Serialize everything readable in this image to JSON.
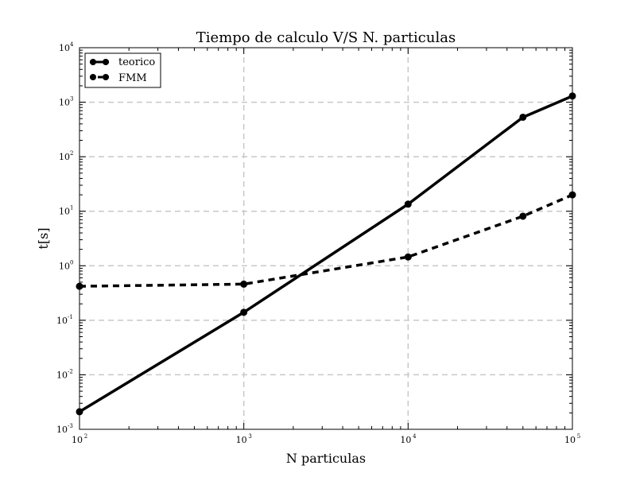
{
  "chart_data": {
    "type": "line",
    "title": "Tiempo de calculo V/S N. particulas",
    "xlabel": "N particulas",
    "ylabel": "t[s]",
    "xscale": "log",
    "yscale": "log",
    "xlim": [
      100,
      100000
    ],
    "ylim": [
      0.001,
      10000
    ],
    "grid": true,
    "legend_position": "top-left",
    "x_ticks": [
      {
        "base": "10",
        "exp": "2"
      },
      {
        "base": "10",
        "exp": "3"
      },
      {
        "base": "10",
        "exp": "4"
      },
      {
        "base": "10",
        "exp": "5"
      }
    ],
    "y_ticks": [
      {
        "base": "10",
        "exp": "-3"
      },
      {
        "base": "10",
        "exp": "-2"
      },
      {
        "base": "10",
        "exp": "-1"
      },
      {
        "base": "10",
        "exp": "0"
      },
      {
        "base": "10",
        "exp": "1"
      },
      {
        "base": "10",
        "exp": "2"
      },
      {
        "base": "10",
        "exp": "3"
      },
      {
        "base": "10",
        "exp": "4"
      }
    ],
    "series": [
      {
        "name": "teorico",
        "style": "solid",
        "color": "#000000",
        "x": [
          100,
          1000,
          10000,
          50000,
          100000
        ],
        "y": [
          0.0021,
          0.14,
          13.5,
          530,
          1300
        ]
      },
      {
        "name": "FMM",
        "style": "dashed",
        "color": "#000000",
        "x": [
          100,
          1000,
          10000,
          50000,
          100000
        ],
        "y": [
          0.42,
          0.46,
          1.45,
          8.1,
          20
        ]
      }
    ]
  }
}
